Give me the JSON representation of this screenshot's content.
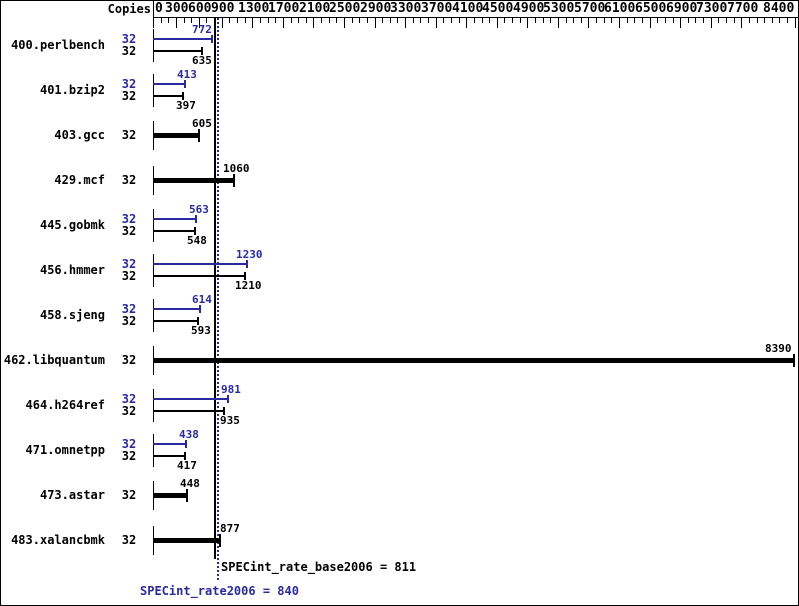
{
  "header": {
    "copies_label": "Copies"
  },
  "colors": {
    "peak_blue": "#2a2aa0",
    "base_black": "#000000",
    "background": "#ffffff"
  },
  "axis": {
    "min": 0,
    "max": 8400,
    "tick_step": 100,
    "labeled_ticks": [
      0,
      300,
      600,
      900,
      1300,
      1700,
      2100,
      2500,
      2900,
      3300,
      3700,
      4100,
      4500,
      4900,
      5300,
      5700,
      6100,
      6500,
      6900,
      7300,
      7700,
      8400
    ]
  },
  "summary": {
    "base_label": "SPECint_rate_base2006 = 811",
    "base_value": 811,
    "peak_label": "SPECint_rate2006 = 840",
    "peak_value": 840
  },
  "benchmarks": [
    {
      "name": "400.perlbench",
      "copies": 32,
      "peak": 772,
      "base": 635
    },
    {
      "name": "401.bzip2",
      "copies": 32,
      "peak": 413,
      "base": 397
    },
    {
      "name": "403.gcc",
      "copies": 32,
      "peak": null,
      "base": 605
    },
    {
      "name": "429.mcf",
      "copies": 32,
      "peak": null,
      "base": 1060
    },
    {
      "name": "445.gobmk",
      "copies": 32,
      "peak": 563,
      "base": 548
    },
    {
      "name": "456.hmmer",
      "copies": 32,
      "peak": 1230,
      "base": 1210
    },
    {
      "name": "458.sjeng",
      "copies": 32,
      "peak": 614,
      "base": 593
    },
    {
      "name": "462.libquantum",
      "copies": 32,
      "peak": null,
      "base": 8390
    },
    {
      "name": "464.h264ref",
      "copies": 32,
      "peak": 981,
      "base": 935
    },
    {
      "name": "471.omnetpp",
      "copies": 32,
      "peak": 438,
      "base": 417
    },
    {
      "name": "473.astar",
      "copies": 32,
      "peak": null,
      "base": 448
    },
    {
      "name": "483.xalancbmk",
      "copies": 32,
      "peak": null,
      "base": 877
    }
  ],
  "chart_data": {
    "type": "bar",
    "orientation": "horizontal",
    "title": "",
    "xlabel": "",
    "ylabel": "Copies",
    "xlim": [
      0,
      8400
    ],
    "grid": false,
    "legend_position": "none",
    "categories": [
      "400.perlbench",
      "401.bzip2",
      "403.gcc",
      "429.mcf",
      "445.gobmk",
      "456.hmmer",
      "458.sjeng",
      "462.libquantum",
      "464.h264ref",
      "471.omnetpp",
      "473.astar",
      "483.xalancbmk"
    ],
    "copies_per_benchmark": [
      32,
      32,
      32,
      32,
      32,
      32,
      32,
      32,
      32,
      32,
      32,
      32
    ],
    "series": [
      {
        "name": "SPECint_rate2006 (peak)",
        "color": "#2a2aa0",
        "values": [
          772,
          413,
          null,
          null,
          563,
          1230,
          614,
          null,
          981,
          438,
          null,
          null
        ]
      },
      {
        "name": "SPECint_rate_base2006 (base)",
        "color": "#000000",
        "values": [
          635,
          397,
          605,
          1060,
          548,
          1210,
          593,
          8390,
          935,
          417,
          448,
          877
        ]
      }
    ],
    "annotations": [
      {
        "text": "SPECint_rate_base2006 = 811",
        "value": 811,
        "style": "solid-black-vertical-line"
      },
      {
        "text": "SPECint_rate2006 = 840",
        "value": 840,
        "style": "dotted-blue-vertical-line"
      }
    ]
  }
}
